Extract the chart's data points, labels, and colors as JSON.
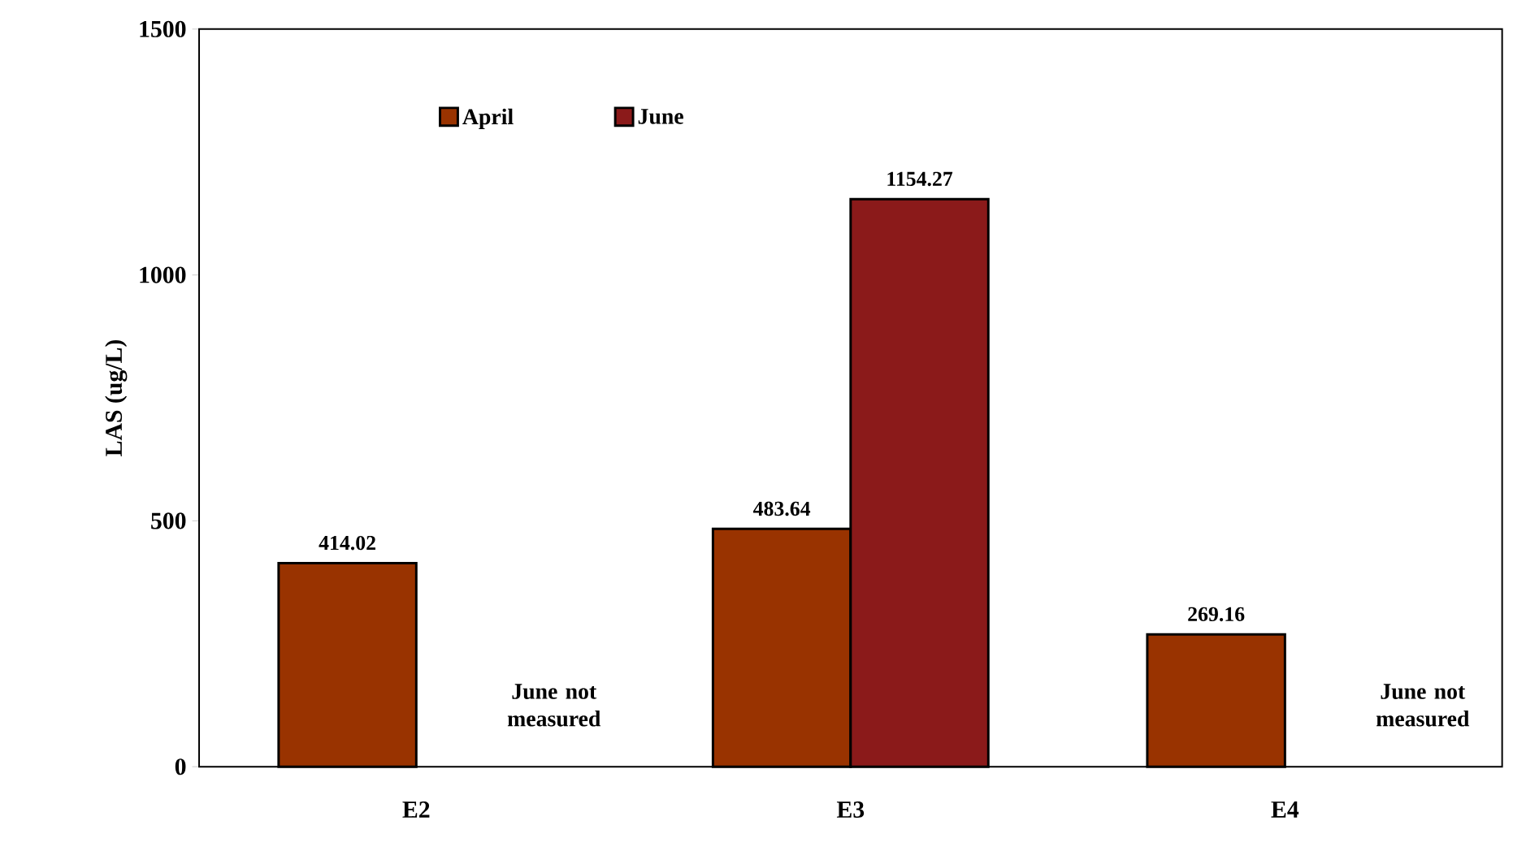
{
  "chart_data": {
    "type": "bar",
    "ylabel": "LAS (ug/L)",
    "categories": [
      "E2",
      "E3",
      "E4"
    ],
    "series": [
      {
        "name": "April",
        "color": "#993300",
        "values": [
          414.02,
          483.64,
          269.16
        ]
      },
      {
        "name": "June",
        "color": "#8b1a1a",
        "values": [
          null,
          1154.27,
          null
        ]
      }
    ],
    "ylim": [
      0,
      1500
    ],
    "yticks": [
      0,
      500,
      1000,
      1500
    ],
    "data_labels": true,
    "legend": "top left",
    "annotations": [
      "June not measured",
      "June not measured"
    ]
  }
}
